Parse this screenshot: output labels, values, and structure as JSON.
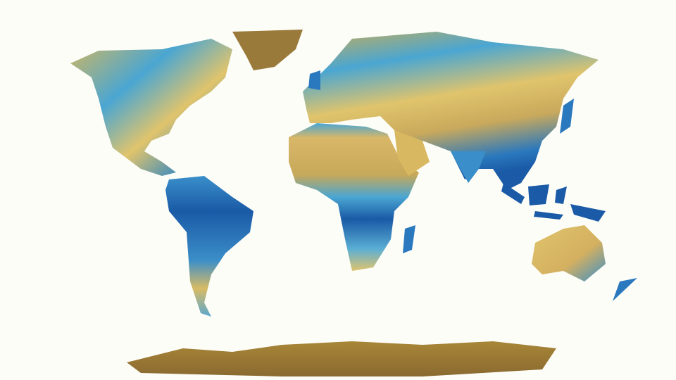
{
  "map": {
    "background_color": "#fdfdf8",
    "palette": {
      "wet": "#1a5aa6",
      "moist": "#4aa6d2",
      "dry": "#e0c46c",
      "arid": "#9a7a3a"
    }
  }
}
